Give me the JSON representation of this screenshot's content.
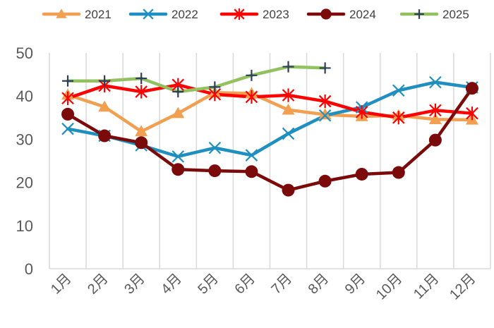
{
  "chart_data": {
    "type": "line",
    "title": "",
    "xlabel": "",
    "ylabel": "",
    "categories": [
      "1月",
      "2月",
      "3月",
      "4月",
      "5月",
      "6月",
      "7月",
      "8月",
      "9月",
      "10月",
      "11月",
      "12月"
    ],
    "ylim": [
      0,
      50
    ],
    "yticks": [
      "0",
      "10",
      "20",
      "30",
      "40",
      "50"
    ],
    "grid": "vertical",
    "legend": "top",
    "series": [
      {
        "name": "2021",
        "color": "#f0a050",
        "marker": "triangle",
        "values": [
          40.3,
          37.5,
          31.8,
          36.0,
          40.8,
          40.6,
          36.8,
          35.7,
          35.3,
          35.5,
          34.6,
          34.5
        ]
      },
      {
        "name": "2022",
        "color": "#1f8fc0",
        "marker": "x",
        "values": [
          32.4,
          30.8,
          28.6,
          26.0,
          28.0,
          26.3,
          31.3,
          35.5,
          37.4,
          41.3,
          43.2,
          42.0
        ]
      },
      {
        "name": "2023",
        "color": "#ff0000",
        "marker": "star",
        "values": [
          39.5,
          42.4,
          41.0,
          42.6,
          40.4,
          39.8,
          40.2,
          38.8,
          36.3,
          35.0,
          36.7,
          36.0
        ]
      },
      {
        "name": "2024",
        "color": "#7b0a0a",
        "marker": "circle",
        "values": [
          35.8,
          30.8,
          29.2,
          23.0,
          22.7,
          22.5,
          18.2,
          20.3,
          21.9,
          22.3,
          29.8,
          41.8
        ]
      },
      {
        "name": "2025",
        "color": "#92c260",
        "marker": "plus",
        "values": [
          43.5,
          43.5,
          44.1,
          41.0,
          42.1,
          44.8,
          46.8,
          46.5,
          null,
          null,
          null,
          null
        ]
      }
    ]
  }
}
